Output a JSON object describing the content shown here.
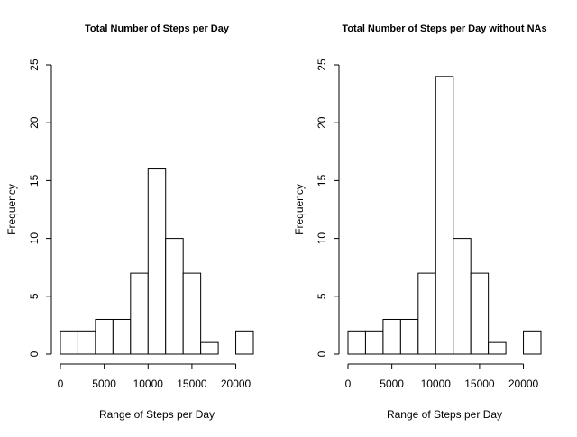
{
  "chart_data": [
    {
      "type": "bar",
      "title": "Total Number of Steps per Day",
      "xlabel": "Range of Steps per Day",
      "ylabel": "Frequency",
      "bin_edges": [
        0,
        2000,
        4000,
        6000,
        8000,
        10000,
        12000,
        14000,
        16000,
        18000,
        20000,
        22000
      ],
      "values": [
        2,
        2,
        3,
        3,
        7,
        16,
        10,
        7,
        1,
        0,
        2
      ],
      "xlim": [
        0,
        22000
      ],
      "ylim": [
        0,
        25
      ],
      "x_ticks": [
        0,
        5000,
        10000,
        15000,
        20000
      ],
      "y_ticks": [
        0,
        5,
        10,
        15,
        20,
        25
      ],
      "grid": false,
      "legend": "none"
    },
    {
      "type": "bar",
      "title": "Total Number of Steps per Day without NAs",
      "xlabel": "Range of Steps per Day",
      "ylabel": "Frequency",
      "bin_edges": [
        0,
        2000,
        4000,
        6000,
        8000,
        10000,
        12000,
        14000,
        16000,
        18000,
        20000,
        22000
      ],
      "values": [
        2,
        2,
        3,
        3,
        7,
        24,
        10,
        7,
        1,
        0,
        2
      ],
      "xlim": [
        0,
        22000
      ],
      "ylim": [
        0,
        25
      ],
      "x_ticks": [
        0,
        5000,
        10000,
        15000,
        20000
      ],
      "y_ticks": [
        0,
        5,
        10,
        15,
        20,
        25
      ],
      "grid": false,
      "legend": "none"
    }
  ]
}
